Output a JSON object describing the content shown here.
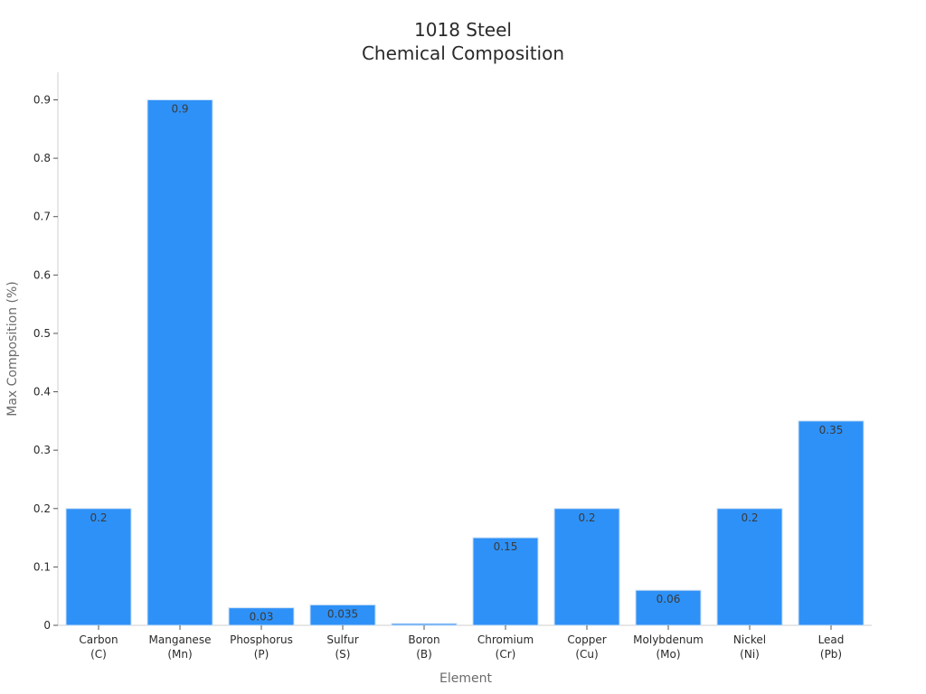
{
  "chart_data": {
    "type": "bar",
    "title": [
      "1018 Steel",
      "Chemical Composition"
    ],
    "xlabel": "Element",
    "ylabel": "Max Composition (%)",
    "categories": [
      [
        "Carbon",
        "(C)"
      ],
      [
        "Manganese",
        "(Mn)"
      ],
      [
        "Phosphorus",
        "(P)"
      ],
      [
        "Sulfur",
        "(S)"
      ],
      [
        "Boron",
        "(B)"
      ],
      [
        "Chromium",
        "(Cr)"
      ],
      [
        "Copper",
        "(Cu)"
      ],
      [
        "Molybdenum",
        "(Mo)"
      ],
      [
        "Nickel",
        "(Ni)"
      ],
      [
        "Lead",
        "(Pb)"
      ]
    ],
    "values": [
      0.2,
      0.9,
      0.03,
      0.035,
      0.003,
      0.15,
      0.2,
      0.06,
      0.2,
      0.35
    ],
    "data_labels": [
      "0.2",
      "0.9",
      "0.03",
      "0.035",
      "",
      "0.15",
      "0.2",
      "0.06",
      "0.2",
      "0.35"
    ],
    "ylim": [
      0,
      0.95
    ],
    "yticks": [
      0,
      0.1,
      0.2,
      0.3,
      0.4,
      0.5,
      0.6,
      0.7,
      0.8,
      0.9
    ],
    "ytick_labels": [
      "0",
      "0.1",
      "0.2",
      "0.3",
      "0.4",
      "0.5",
      "0.6",
      "0.7",
      "0.8",
      "0.9"
    ],
    "grid": false,
    "legend": "none",
    "bar_color": "#2e91f7",
    "bar_edge_color": "#c9def5"
  }
}
